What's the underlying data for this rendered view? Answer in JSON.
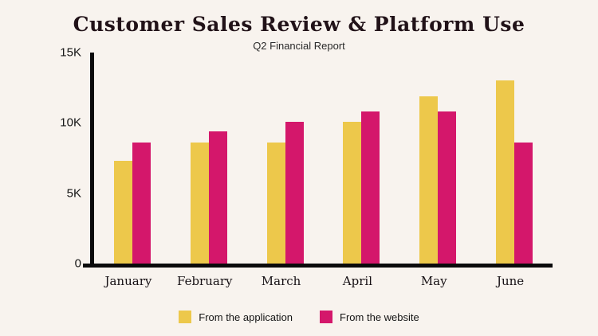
{
  "page": {
    "background_color": "#f8f3ee",
    "axis_color": "#0b0a0b"
  },
  "chart_data": {
    "type": "bar",
    "title": "Customer Sales Review & Platform Use",
    "subtitle": "Q2 Financial Report",
    "categories": [
      "January",
      "February",
      "March",
      "April",
      "May",
      "June"
    ],
    "series": [
      {
        "name": "From the application",
        "color": "#EDC84B",
        "values": [
          7300,
          8600,
          8600,
          10100,
          11900,
          13000
        ]
      },
      {
        "name": "From the website",
        "color": "#D4176B",
        "values": [
          8600,
          9400,
          10100,
          10800,
          10800,
          8600
        ]
      }
    ],
    "xlabel": "",
    "ylabel": "",
    "ylim": [
      0,
      15000
    ],
    "yticks": [
      {
        "label": "15K",
        "value": 15000
      },
      {
        "label": "10K",
        "value": 10000
      },
      {
        "label": "5K",
        "value": 5000
      },
      {
        "label": "0",
        "value": 0
      }
    ],
    "grid": false,
    "legend_position": "bottom"
  }
}
